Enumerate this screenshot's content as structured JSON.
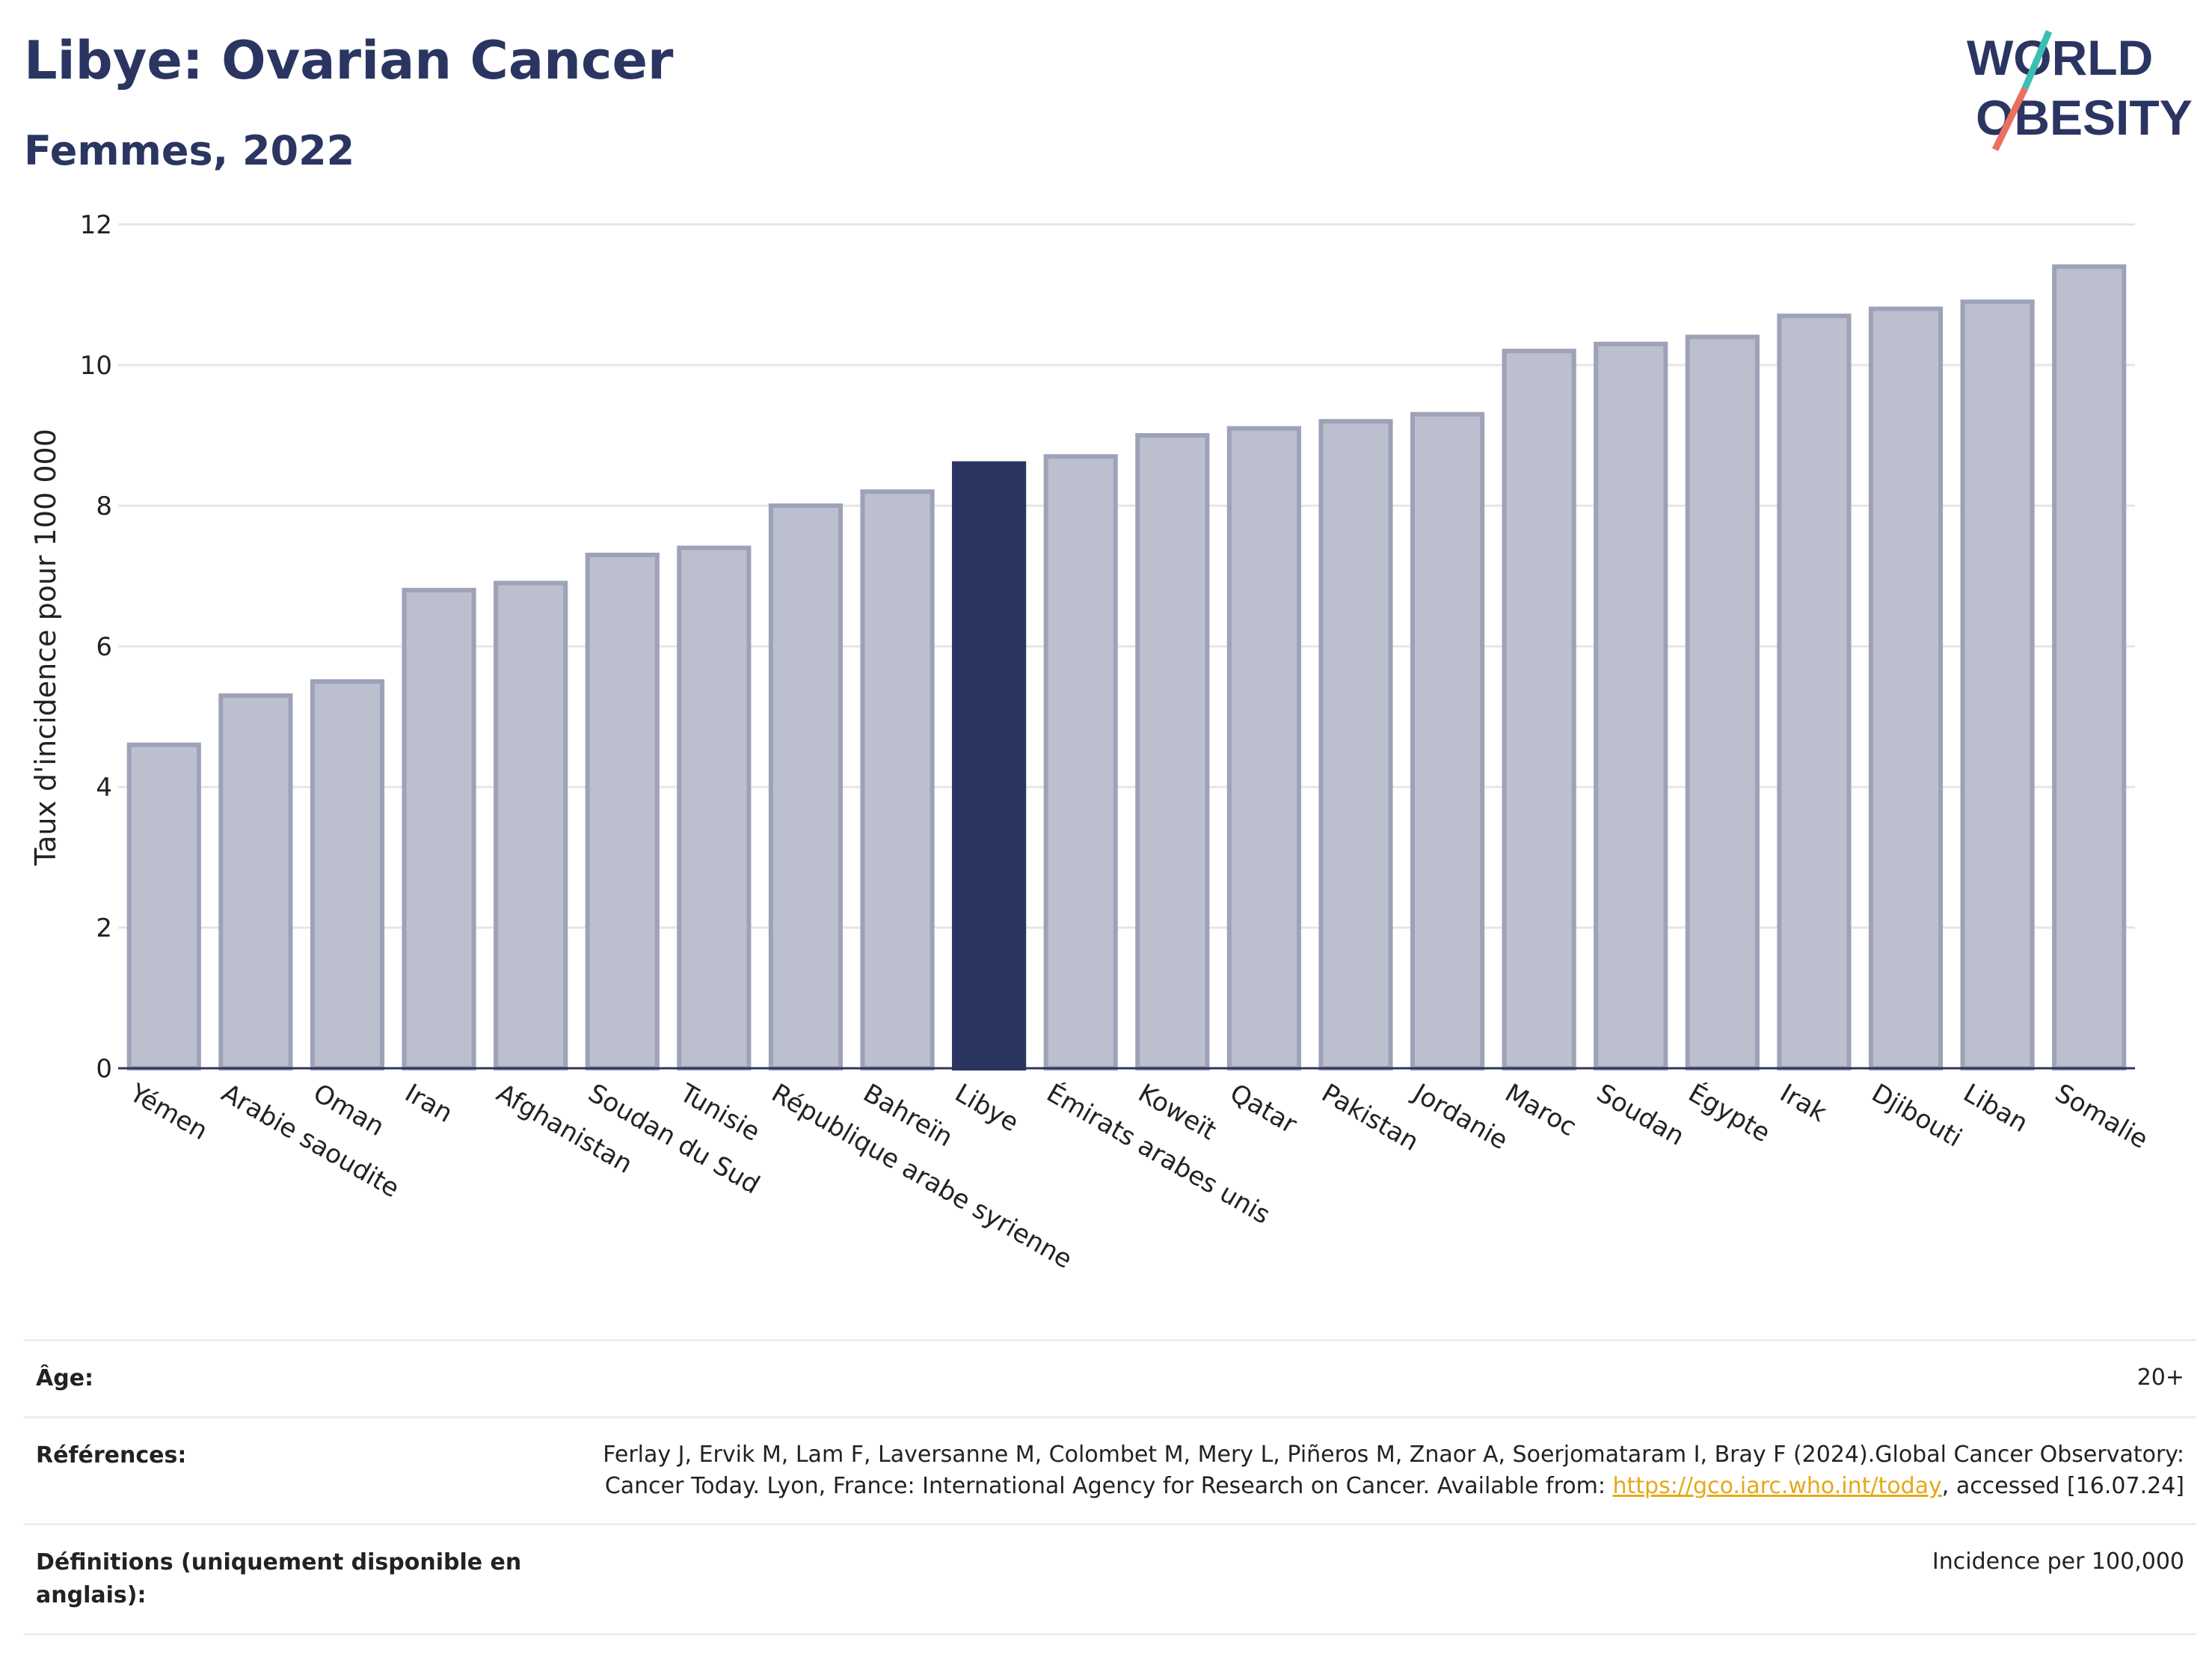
{
  "header": {
    "title": "Libye: Ovarian Cancer",
    "subtitle": "Femmes, 2022",
    "logo_line1": "WORLD",
    "logo_line2": "OBESITY"
  },
  "chart_data": {
    "type": "bar",
    "ylabel": "Taux d'incidence pour 100 000",
    "ylim": [
      0,
      12
    ],
    "yticks": [
      0,
      2,
      4,
      6,
      8,
      10,
      12
    ],
    "grid": true,
    "highlight": "Libye",
    "categories": [
      "Yémen",
      "Arabie saoudite",
      "Oman",
      "Iran",
      "Afghanistan",
      "Soudan du Sud",
      "Tunisie",
      "République arabe syrienne",
      "Bahreïn",
      "Libye",
      "Émirats arabes unis",
      "Koweït",
      "Qatar",
      "Pakistan",
      "Jordanie",
      "Maroc",
      "Soudan",
      "Égypte",
      "Irak",
      "Djibouti",
      "Liban",
      "Somalie"
    ],
    "values": [
      4.6,
      5.3,
      5.5,
      6.8,
      6.9,
      7.3,
      7.4,
      8.0,
      8.2,
      8.6,
      8.7,
      9.0,
      9.1,
      9.2,
      9.3,
      10.2,
      10.3,
      10.4,
      10.7,
      10.8,
      10.9,
      11.4
    ],
    "colors": {
      "bar": "#bcbfcd",
      "bar_border": "#9ea2b8",
      "highlight": "#2b3561",
      "axis": "#2b3561",
      "grid": "#e6e6e6"
    }
  },
  "meta": {
    "age_label": "Âge:",
    "age_value": "20+",
    "refs_label": "Références:",
    "refs_text": "Ferlay J, Ervik M, Lam F, Laversanne M, Colombet M, Mery L, Piñeros M, Znaor A, Soerjomataram I, Bray F (2024).Global Cancer Observatory: Cancer Today. Lyon, France: International Agency for Research on Cancer. Available from: ",
    "refs_link": "https://gco.iarc.who.int/today",
    "refs_tail": ", accessed [16.07.24]",
    "defs_label": "Définitions (uniquement disponible en anglais):",
    "defs_value": "Incidence per 100,000"
  }
}
